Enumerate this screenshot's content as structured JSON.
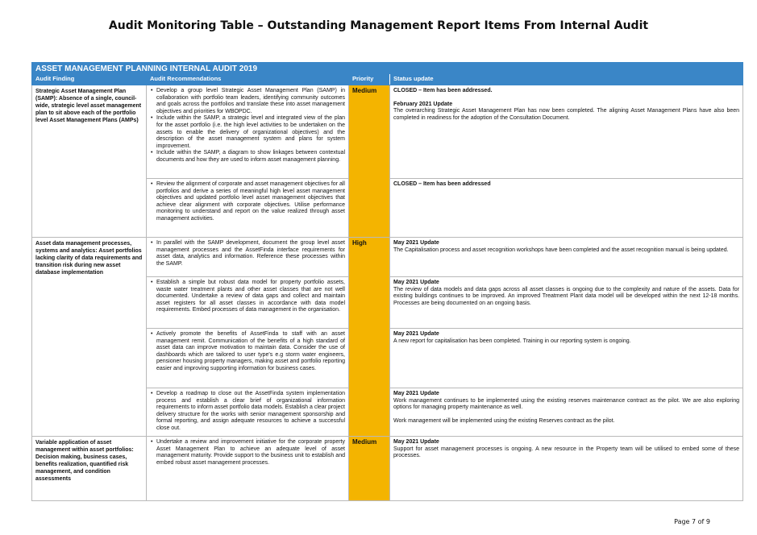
{
  "title": "Audit Monitoring Table – Outstanding Management Report Items From Internal Audit",
  "page_number": "Page 7 of 9",
  "table": {
    "banner": "ASSET MANAGEMENT PLANNING INTERNAL AUDIT 2019",
    "columns": [
      "Audit Finding",
      "Audit Recommendations",
      "Priority",
      "Status update"
    ],
    "findings": [
      {
        "finding": "Strategic Asset Management Plan (SAMP): Absence of a single, council-wide, strategic level asset management plan to sit above each of the portfolio level Asset Management Plans (AMPs)",
        "priority": "Medium",
        "rows": [
          {
            "recommendations": [
              "Develop a group level Strategic Asset Management Plan (SAMP) in collaboration with portfolio team leaders, identifying community outcomes and goals across the portfolios and translate these into asset management objectives and priorities for WBOPDC.",
              "Include within the SAMP, a strategic level and integrated view of the plan for the asset portfolio (i.e. the high level activities to be undertaken on the assets to enable the delivery of organizational objectives) and the description of the asset management system and plans for system improvement.",
              "Include within the SAMP, a diagram to show linkages between contextual documents and how they are used to inform asset management planning."
            ],
            "status": {
              "closed": "CLOSED – Item has been addressed.",
              "update_heading": "February 2021 Update",
              "update_text": "The overarching Strategic Asset Management Plan has now been completed. The aligning Asset Management Plans have also been completed in readiness for the adoption of the Consultation Document."
            }
          },
          {
            "recommendations": [
              "Review the alignment of corporate and asset management objectives for all portfolios and derive a series of meaningful high level asset management objectives and updated portfolio level asset management objectives that achieve clear alignment with corporate objectives. Utilise performance monitoring to understand and report on the value realized through asset management activities."
            ],
            "status": {
              "closed": "CLOSED – Item has been addressed"
            }
          }
        ]
      },
      {
        "finding": "Asset data management processes, systems and analytics: Asset portfolios lacking clarity of data requirements and transition risk during new asset database implementation",
        "priority": "High",
        "rows": [
          {
            "recommendations": [
              "In parallel with the SAMP development, document the group level asset management processes and the AssetFinda interface requirements for asset data, analytics and information. Reference these processes within the SAMP."
            ],
            "status": {
              "update_heading": "May 2021 Update",
              "update_text": "The Capitalisation process and asset recognition workshops have been completed and the asset recognition manual is being updated."
            }
          },
          {
            "recommendations": [
              "Establish a simple but robust data model for property portfolio assets, waste water treatment plants and other asset classes that are not well documented. Undertake a review of data gaps and collect and maintain asset registers for all asset classes in accordance with data model requirements. Embed processes of data management in the organisation."
            ],
            "status": {
              "update_heading": "May 2021 Update",
              "update_text": "The review of data models and data gaps across all asset classes is ongoing due to the complexity and nature of the assets. Data for existing buildings continues to be improved. An improved Treatment Plant data model will be developed within the next 12-18 months. Processes are being documented on an ongoing basis."
            }
          },
          {
            "recommendations": [
              "Actively promote the benefits of AssetFinda to staff with an asset management remit. Communication of the benefits of a high standard of asset data can improve motivation to maintain data. Consider the use of dashboards which are tailored to user type's e.g storm water engineers, pensioner housing property managers, making asset and portfolio reporting easier and improving supporting information for business cases."
            ],
            "status": {
              "update_heading": "May 2021 Update",
              "update_text": "A new report for capitalisation has been completed. Training in our reporting system is ongoing."
            }
          },
          {
            "recommendations": [
              "Develop a roadmap to close out the AssetFinda system implementation process and establish a clear brief of organizational information requirements to inform asset portfolio data models. Establish a clear project delivery structure for the works with senior management sponsorship and formal reporting, and assign adequate resources to achieve a successful close out."
            ],
            "status": {
              "update_heading": "May 2021 Update",
              "update_text": "Work management continues to be implemented using the existing reserves maintenance contract as the pilot. We are also exploring options for managing property maintenance as well.",
              "update_text_2": "Work management will be implemented using the existing Reserves contract as the pilot."
            }
          }
        ]
      },
      {
        "finding": "Variable application of asset management within asset portfolios: Decision making, business cases, benefits realization, quantified risk management, and condition assessments",
        "priority": "Medium",
        "rows": [
          {
            "recommendations": [
              "Undertake a review and improvement initiative for the corporate property Asset Management Plan to achieve an adequate level of asset management maturity. Provide support to the business unit to establish and embed robust asset management processes."
            ],
            "status": {
              "update_heading": "May 2021 Update",
              "update_text": "Support for asset management processes is ongoing. A new resource in the Property team will be utilised to embed some of these processes."
            }
          }
        ]
      }
    ]
  }
}
